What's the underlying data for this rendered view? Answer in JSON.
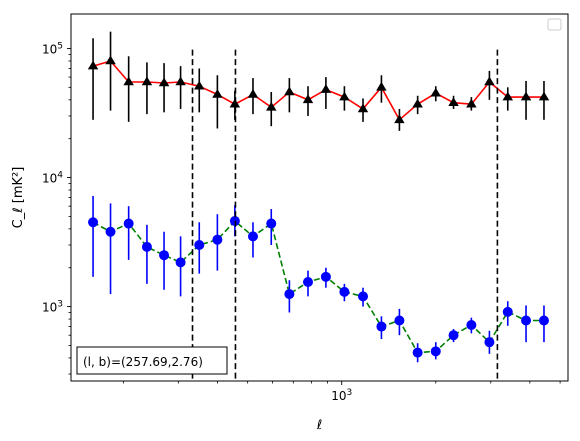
{
  "chart_data": {
    "type": "line",
    "xscale": "log",
    "yscale": "log",
    "xlabel": "ℓ",
    "ylabel": "C_ℓ  [mK²]",
    "xlim": [
      136,
      5300
    ],
    "ylim": [
      265,
      185000
    ],
    "x_tick_labels": [
      {
        "value": 1000,
        "base": "10",
        "exp": "3"
      }
    ],
    "y_tick_labels": [
      {
        "value": 1000,
        "base": "10",
        "exp": "3"
      },
      {
        "value": 10000,
        "base": "10",
        "exp": "4"
      },
      {
        "value": 100000,
        "base": "10",
        "exp": "5"
      }
    ],
    "vlines": [
      333,
      457,
      3150
    ],
    "vline_range": [
      265,
      98000
    ],
    "legend": "top-right",
    "legend_entries": [],
    "annotation": "(l, b)=(257.69,2.76)",
    "series": [
      {
        "marker": "triangle",
        "marker_color": "#000000",
        "line_color": "#ff0000",
        "line_style": "solid",
        "errorbar_color": "#000000",
        "x": [
          160,
          182,
          208,
          238,
          270,
          305,
          350,
          400,
          455,
          520,
          595,
          680,
          780,
          890,
          1020,
          1170,
          1340,
          1530,
          1750,
          2000,
          2280,
          2600,
          2970,
          3400,
          3890,
          4440
        ],
        "y": [
          73000,
          80000,
          55000,
          55000,
          54000,
          55000,
          51000,
          44000,
          37000,
          44000,
          35000,
          46000,
          40000,
          48000,
          42000,
          34000,
          50000,
          28000,
          37000,
          45000,
          38000,
          37000,
          55000,
          42000,
          42000,
          42000
        ],
        "err_low": [
          28000,
          33000,
          27000,
          31000,
          32000,
          34000,
          32000,
          24000,
          28000,
          31000,
          25000,
          32000,
          30000,
          34000,
          33000,
          27000,
          38000,
          23000,
          31000,
          39000,
          34000,
          33000,
          40000,
          33000,
          28000,
          28000
        ],
        "err_high": [
          120000,
          135000,
          87000,
          78000,
          77000,
          73000,
          70000,
          62000,
          47000,
          59000,
          46000,
          59000,
          51000,
          60000,
          51000,
          41000,
          62000,
          34000,
          43000,
          51000,
          43000,
          42000,
          67000,
          50000,
          56000,
          56000
        ]
      },
      {
        "marker": "circle",
        "marker_color": "#0000ff",
        "line_color": "#008000",
        "line_style": "dashed",
        "errorbar_color": "#0000ff",
        "x": [
          160,
          182,
          208,
          238,
          270,
          305,
          350,
          400,
          455,
          520,
          595,
          680,
          780,
          890,
          1020,
          1170,
          1340,
          1530,
          1750,
          2000,
          2280,
          2600,
          2970,
          3400,
          3890,
          4440
        ],
        "y": [
          4500,
          3800,
          4400,
          2900,
          2500,
          2200,
          3000,
          3300,
          4600,
          3500,
          4400,
          1250,
          1550,
          1700,
          1300,
          1200,
          700,
          780,
          440,
          450,
          600,
          720,
          530,
          910,
          780,
          780
        ],
        "err_low": [
          1700,
          1250,
          2300,
          1500,
          1350,
          1200,
          1800,
          1900,
          3500,
          2400,
          3000,
          900,
          1200,
          1400,
          1100,
          1000,
          560,
          600,
          370,
          390,
          530,
          620,
          430,
          710,
          530,
          530
        ],
        "err_high": [
          7200,
          6300,
          6000,
          4300,
          3800,
          3500,
          4500,
          5200,
          6100,
          4500,
          5700,
          1600,
          1900,
          2000,
          1500,
          1400,
          840,
          960,
          520,
          530,
          670,
          820,
          650,
          1100,
          1020,
          1020
        ]
      }
    ]
  }
}
